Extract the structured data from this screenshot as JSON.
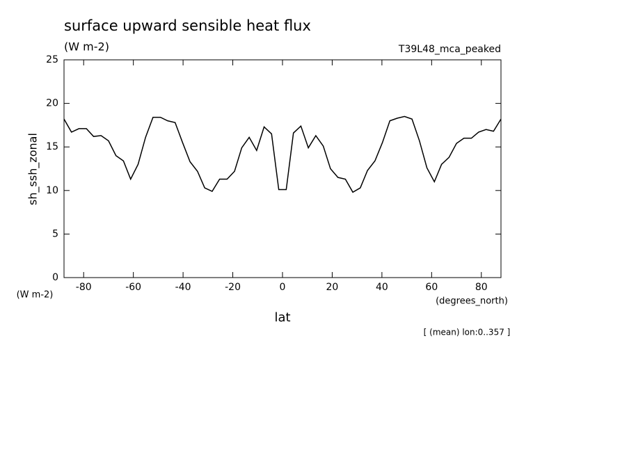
{
  "chart_data": {
    "type": "line",
    "title": "surface upward sensible heat flux",
    "subtitle": "(W m-2)",
    "dataset": "T39L48_mca_peaked",
    "y_label": "sh_ssh_zonal",
    "y_units": "(W m-2)",
    "x_label": "lat",
    "x_units": "(degrees_north)",
    "note": "[ (mean) lon:0..357 ]",
    "x": [
      -87.9,
      -84.9,
      -81.9,
      -78.9,
      -76.0,
      -73.0,
      -70.0,
      -67.0,
      -64.0,
      -61.1,
      -58.1,
      -55.1,
      -52.1,
      -49.1,
      -46.2,
      -43.2,
      -40.2,
      -37.2,
      -34.2,
      -31.3,
      -28.3,
      -25.3,
      -22.3,
      -19.3,
      -16.4,
      -13.4,
      -10.4,
      -7.4,
      -4.4,
      -1.5,
      1.5,
      4.4,
      7.4,
      10.4,
      13.4,
      16.4,
      19.3,
      22.3,
      25.3,
      28.3,
      31.3,
      34.2,
      37.2,
      40.2,
      43.2,
      46.2,
      49.1,
      52.1,
      55.1,
      58.1,
      61.1,
      64.0,
      67.0,
      70.0,
      73.0,
      76.0,
      78.9,
      81.9,
      84.9,
      87.9
    ],
    "series": [
      {
        "name": "sh_ssh_zonal",
        "color": "#000000",
        "values": [
          18.2,
          16.7,
          17.1,
          17.1,
          16.2,
          16.3,
          15.7,
          14.0,
          13.4,
          11.3,
          13.0,
          16.1,
          18.4,
          18.4,
          18.0,
          17.8,
          15.5,
          13.3,
          12.2,
          10.3,
          9.9,
          11.3,
          11.3,
          12.2,
          14.9,
          16.1,
          14.6,
          17.3,
          16.5,
          10.1,
          10.1,
          16.6,
          17.4,
          14.9,
          16.3,
          15.1,
          12.5,
          11.5,
          11.3,
          9.8,
          10.3,
          12.3,
          13.4,
          15.5,
          18.0,
          18.3,
          18.5,
          18.2,
          15.7,
          12.6,
          11.0,
          13.0,
          13.8,
          15.4,
          16.0,
          16.0,
          16.7,
          17.0,
          16.8,
          18.2
        ]
      }
    ],
    "xlim": [
      -87.9,
      87.9
    ],
    "ylim": [
      0,
      25
    ],
    "xticks": [
      -80,
      -60,
      -40,
      -20,
      0,
      20,
      40,
      60,
      80
    ],
    "yticks": [
      0,
      5,
      10,
      15,
      20,
      25
    ]
  }
}
